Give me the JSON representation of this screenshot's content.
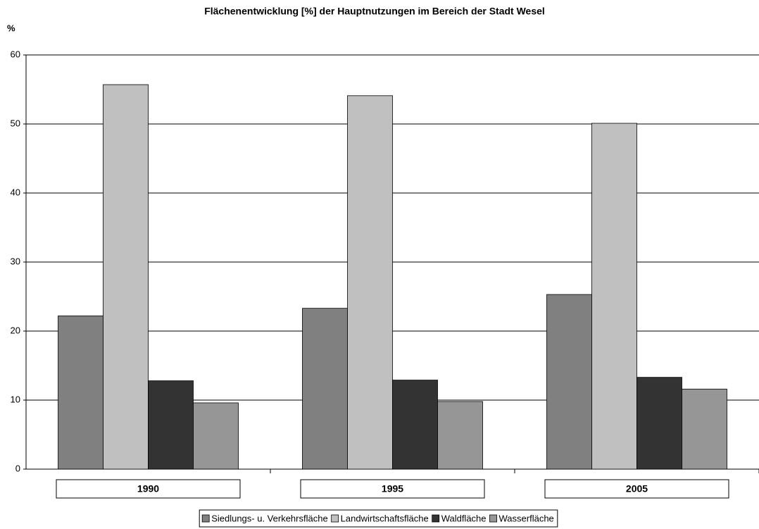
{
  "chart_data": {
    "type": "bar",
    "title": "Flächenentwicklung [%] der Hauptnutzungen im Bereich der Stadt Wesel",
    "y_label": "%",
    "categories": [
      "1990",
      "1995",
      "2005"
    ],
    "series": [
      {
        "name": "Siedlungs- u. Verkehrsfläche",
        "color": "#808080",
        "values": [
          22.2,
          23.3,
          25.3
        ]
      },
      {
        "name": "Landwirtschaftsfläche",
        "color": "#c0c0c0",
        "values": [
          55.7,
          54.1,
          50.1
        ]
      },
      {
        "name": "Waldfläche",
        "color": "#333333",
        "values": [
          12.8,
          12.9,
          13.3
        ]
      },
      {
        "name": "Wasserfläche",
        "color": "#969696",
        "values": [
          9.6,
          9.8,
          11.6
        ]
      }
    ],
    "ylim": [
      0,
      60
    ],
    "yticks": [
      0,
      10,
      20,
      30,
      40,
      50,
      60
    ],
    "grid": true,
    "legend": "bottom"
  }
}
